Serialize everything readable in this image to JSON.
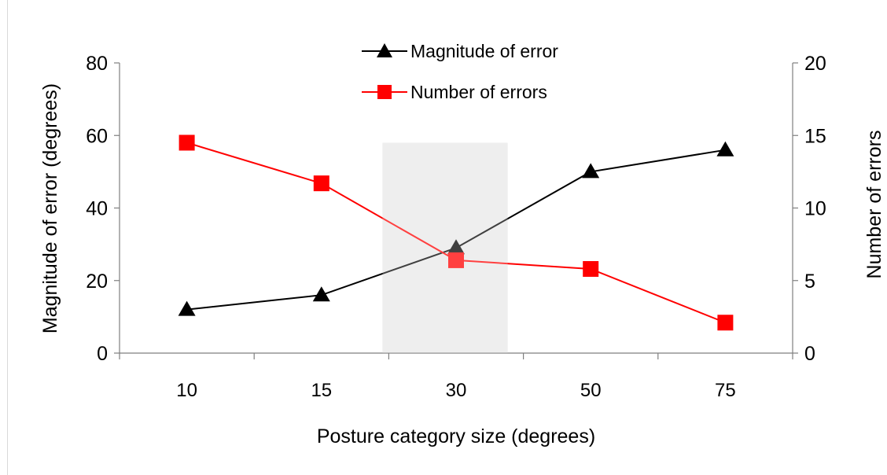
{
  "chart_data": {
    "type": "line",
    "categories": [
      "10",
      "15",
      "30",
      "50",
      "75"
    ],
    "xlabel": "Posture category size (degrees)",
    "ylabel_left": "Magnitude of error (degrees)",
    "ylabel_right": "Number of errors",
    "ylim_left": [
      0,
      80
    ],
    "ylim_right": [
      0,
      20
    ],
    "yticks_left": [
      "0",
      "20",
      "40",
      "60",
      "80"
    ],
    "yticks_right": [
      "0",
      "5",
      "10",
      "15",
      "20"
    ],
    "grid": false,
    "legend_position": "top-center",
    "highlight_category": "30",
    "series": [
      {
        "name": "Magnitude of error",
        "axis": "left",
        "marker": "triangle",
        "color": "#000000",
        "values": [
          12,
          16,
          29,
          50,
          56
        ]
      },
      {
        "name": "Number of errors",
        "axis": "right",
        "marker": "square",
        "color": "#ff0000",
        "values": [
          14.5,
          11.7,
          6.4,
          5.8,
          2.1
        ]
      }
    ]
  },
  "colors": {
    "highlight_band": "#e8e8e8",
    "axis": "#7f7f7f"
  }
}
